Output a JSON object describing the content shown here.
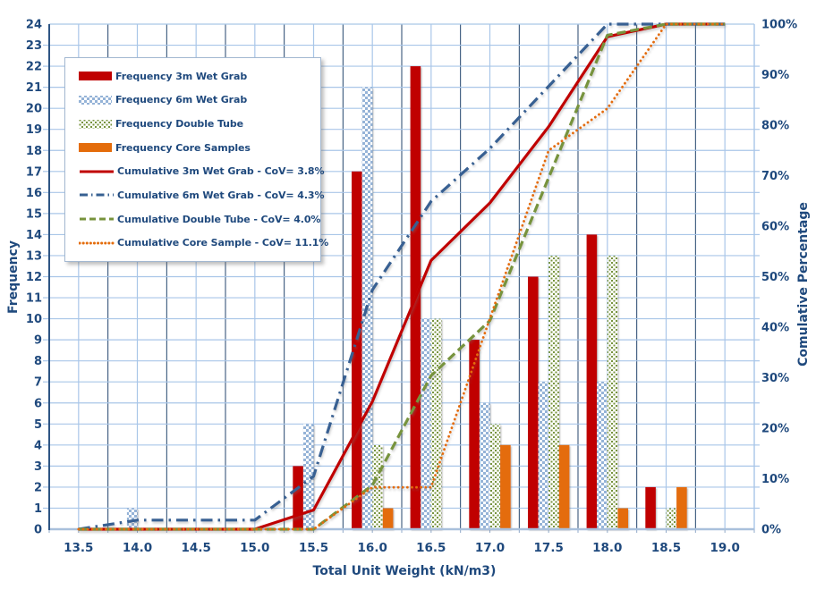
{
  "text_color": "#1F497D",
  "frame": {
    "grid_light": "#A9C6E8",
    "grid_dark": "#24466E",
    "axis_dark": "#2E5584",
    "axis_light": "#A9C0DC",
    "plot_bg": "#FFFFFF"
  },
  "legend": {
    "entries": [
      {
        "label": "Frequency 3m Wet Grab",
        "swatch": "bar",
        "pattern": "solid",
        "color": "#C00000"
      },
      {
        "label": "Frequency 6m Wet Grab",
        "swatch": "bar",
        "pattern": "checker",
        "color": "#95B3D7"
      },
      {
        "label": "Frequency Double Tube",
        "swatch": "bar",
        "pattern": "dots",
        "color": "#77933C"
      },
      {
        "label": "Frequency Core Samples",
        "swatch": "bar",
        "pattern": "solid",
        "color": "#E46C0A"
      },
      {
        "label": "Cumulative 3m Wet Grab - CoV= 3.8%",
        "swatch": "line",
        "dash": "solid",
        "color": "#C00000"
      },
      {
        "label": "Cumulative 6m Wet Grab - CoV= 4.3%",
        "swatch": "line",
        "dash": "dashdot",
        "color": "#376092"
      },
      {
        "label": "Cumulative Double Tube - CoV= 4.0%",
        "swatch": "line",
        "dash": "dash",
        "color": "#77933C"
      },
      {
        "label": "Cumulative Core Sample - CoV= 11.1%",
        "swatch": "line",
        "dash": "dot",
        "color": "#E46C0A"
      }
    ]
  },
  "chart_data": {
    "type": "bar",
    "subtype": "histogram-with-cumulative-lines",
    "title": "",
    "x_axis": {
      "title": "Total Unit Weight (kN/m3)",
      "min": 13.25,
      "max": 19.25,
      "tick_labels": [
        "13.5",
        "14.0",
        "14.5",
        "15.0",
        "15.5",
        "16.0",
        "16.5",
        "17.0",
        "17.5",
        "18.0",
        "18.5",
        "19.0"
      ]
    },
    "y_left": {
      "title": "Frequency",
      "min": 0,
      "max": 24,
      "tick_labels": [
        "0",
        "1",
        "2",
        "3",
        "4",
        "5",
        "6",
        "7",
        "8",
        "9",
        "10",
        "11",
        "12",
        "13",
        "14",
        "15",
        "16",
        "17",
        "18",
        "19",
        "20",
        "21",
        "22",
        "23",
        "24"
      ]
    },
    "y_right": {
      "title": "Comulative Percentage",
      "min": 0,
      "max": 100,
      "tick_labels": [
        "0%",
        "10%",
        "20%",
        "30%",
        "40%",
        "50%",
        "60%",
        "70%",
        "80%",
        "90%",
        "100%"
      ]
    },
    "bins": [
      13.5,
      14.0,
      14.5,
      15.0,
      15.5,
      16.0,
      16.5,
      17.0,
      17.5,
      18.0,
      18.5,
      19.0
    ],
    "bar_series": [
      {
        "name": "Frequency 3m Wet Grab",
        "color": "#C00000",
        "pattern": "solid",
        "values": [
          0,
          0,
          0,
          0,
          3,
          17,
          22,
          9,
          12,
          14,
          2,
          0
        ]
      },
      {
        "name": "Frequency 6m Wet Grab",
        "color": "#95B3D7",
        "pattern": "checker",
        "values": [
          0,
          1,
          0,
          0,
          5,
          21,
          10,
          6,
          7,
          7,
          0,
          0
        ]
      },
      {
        "name": "Frequency Double Tube",
        "color": "#77933C",
        "pattern": "dots",
        "values": [
          0,
          0,
          0,
          0,
          0,
          4,
          10,
          5,
          13,
          13,
          1,
          0
        ]
      },
      {
        "name": "Frequency Core Samples",
        "color": "#E46C0A",
        "pattern": "solid",
        "values": [
          0,
          0,
          0,
          0,
          0,
          1,
          0,
          4,
          4,
          1,
          2,
          0
        ]
      }
    ],
    "cumulative_series": [
      {
        "name": "Cumulative 3m Wet Grab - CoV= 3.8%",
        "color": "#C00000",
        "dash": "solid",
        "values": [
          0,
          0,
          0,
          0,
          3.8,
          25.3,
          53.2,
          64.6,
          79.7,
          97.5,
          100,
          100
        ]
      },
      {
        "name": "Cumulative 6m Wet Grab - CoV= 4.3%",
        "color": "#376092",
        "dash": "dashdot",
        "values": [
          0,
          1.8,
          1.8,
          1.8,
          10.5,
          47.4,
          64.9,
          75.4,
          87.7,
          100,
          100,
          100
        ]
      },
      {
        "name": "Cumulative Double Tube - CoV= 4.0%",
        "color": "#77933C",
        "dash": "dash",
        "values": [
          0,
          0,
          0,
          0,
          0,
          8.7,
          30.4,
          41.3,
          69.6,
          97.8,
          100,
          100
        ]
      },
      {
        "name": "Cumulative Core Sample - CoV= 11.1%",
        "color": "#E46C0A",
        "dash": "dot",
        "values": [
          0,
          0,
          0,
          0,
          0,
          8.3,
          8.3,
          41.7,
          75.0,
          83.3,
          100,
          100
        ]
      }
    ],
    "legend_position": "top-left-inside",
    "grid": "on"
  }
}
